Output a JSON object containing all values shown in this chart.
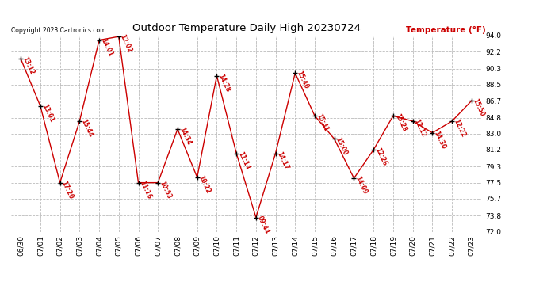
{
  "title": "Outdoor Temperature Daily High 20230724",
  "copyright": "Copyright 2023 Cartronics.com",
  "ylabel": "Temperature (°F)",
  "background_color": "#ffffff",
  "grid_color": "#bbbbbb",
  "line_color": "#cc0000",
  "marker_color": "#000000",
  "label_color": "#cc0000",
  "title_color": "#000000",
  "ylabel_color": "#cc0000",
  "dates": [
    "06/30",
    "07/01",
    "07/02",
    "07/03",
    "07/04",
    "07/05",
    "07/06",
    "07/07",
    "07/08",
    "07/09",
    "07/10",
    "07/11",
    "07/12",
    "07/13",
    "07/14",
    "07/15",
    "07/16",
    "07/17",
    "07/18",
    "07/19",
    "07/20",
    "07/21",
    "07/22",
    "07/23"
  ],
  "values": [
    91.4,
    86.1,
    77.5,
    84.4,
    93.5,
    93.9,
    77.5,
    77.5,
    83.5,
    78.1,
    89.5,
    80.8,
    73.6,
    80.8,
    89.8,
    85.0,
    82.4,
    78.0,
    81.2,
    85.0,
    84.4,
    83.1,
    84.4,
    86.7
  ],
  "time_labels": [
    "13:12",
    "13:01",
    "17:20",
    "15:44",
    "14:01",
    "12:02",
    "11:16",
    "10:53",
    "14:34",
    "10:22",
    "14:28",
    "11:14",
    "09:44",
    "14:17",
    "15:40",
    "15:41",
    "15:00",
    "14:09",
    "12:26",
    "15:28",
    "12:12",
    "14:30",
    "12:22",
    "15:50"
  ],
  "ylim": [
    72.0,
    94.0
  ],
  "yticks": [
    72.0,
    73.8,
    75.7,
    77.5,
    79.3,
    81.2,
    83.0,
    84.8,
    86.7,
    88.5,
    90.3,
    92.2,
    94.0
  ]
}
